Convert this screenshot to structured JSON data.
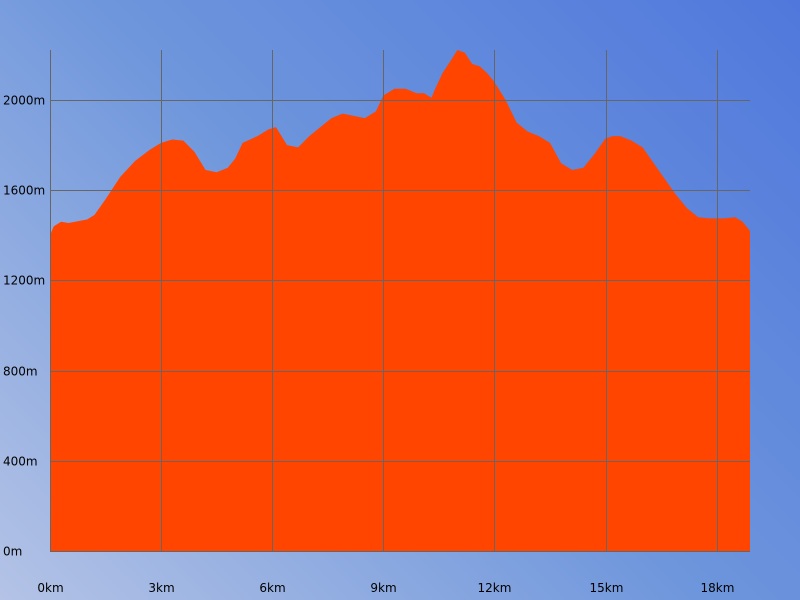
{
  "chart_data": {
    "type": "area",
    "title": "",
    "xlabel": "",
    "ylabel": "",
    "xlim": [
      0,
      18.9
    ],
    "ylim": [
      0,
      2222
    ],
    "grid": true,
    "legend": "none",
    "colors": {
      "fill": "#ff4500",
      "grid": "#666666",
      "text": "#000000"
    },
    "x_ticks": [
      {
        "value": 0,
        "label": "0km"
      },
      {
        "value": 3,
        "label": "3km"
      },
      {
        "value": 6,
        "label": "6km"
      },
      {
        "value": 9,
        "label": "9km"
      },
      {
        "value": 12,
        "label": "12km"
      },
      {
        "value": 15,
        "label": "15km"
      },
      {
        "value": 18,
        "label": "18km"
      }
    ],
    "y_ticks": [
      {
        "value": 0,
        "label": "0m"
      },
      {
        "value": 400,
        "label": "400m"
      },
      {
        "value": 800,
        "label": "800m"
      },
      {
        "value": 1200,
        "label": "1200m"
      },
      {
        "value": 1600,
        "label": "1600m"
      },
      {
        "value": 2000,
        "label": "2000m"
      }
    ],
    "series": [
      {
        "x": [
          0,
          0.1,
          0.3,
          0.5,
          1.0,
          1.2,
          1.5,
          1.9,
          2.3,
          2.7,
          3.0,
          3.3,
          3.6,
          3.9,
          4.2,
          4.5,
          4.8,
          5.0,
          5.2,
          5.6,
          5.9,
          6.1,
          6.4,
          6.7,
          7.0,
          7.3,
          7.6,
          7.9,
          8.2,
          8.5,
          8.8,
          9.0,
          9.3,
          9.6,
          9.9,
          10.1,
          10.3,
          10.4,
          10.6,
          10.8,
          11.0,
          11.2,
          11.4,
          11.6,
          11.8,
          12.0,
          12.3,
          12.6,
          12.9,
          13.2,
          13.5,
          13.8,
          14.1,
          14.4,
          14.7,
          15.0,
          15.2,
          15.4,
          15.7,
          16.0,
          16.3,
          16.6,
          16.9,
          17.2,
          17.5,
          17.8,
          18.0,
          18.2,
          18.5,
          18.7,
          18.9
        ],
        "y": [
          1400,
          1440,
          1460,
          1455,
          1470,
          1490,
          1560,
          1660,
          1730,
          1780,
          1810,
          1825,
          1820,
          1770,
          1690,
          1680,
          1700,
          1740,
          1810,
          1840,
          1870,
          1880,
          1800,
          1790,
          1840,
          1880,
          1920,
          1940,
          1930,
          1920,
          1950,
          2020,
          2050,
          2050,
          2030,
          2030,
          2010,
          2050,
          2120,
          2170,
          2222,
          2210,
          2160,
          2150,
          2120,
          2080,
          2000,
          1900,
          1860,
          1840,
          1810,
          1720,
          1690,
          1700,
          1760,
          1830,
          1840,
          1840,
          1820,
          1790,
          1720,
          1650,
          1580,
          1520,
          1480,
          1475,
          1475,
          1475,
          1480,
          1460,
          1420
        ]
      }
    ]
  }
}
